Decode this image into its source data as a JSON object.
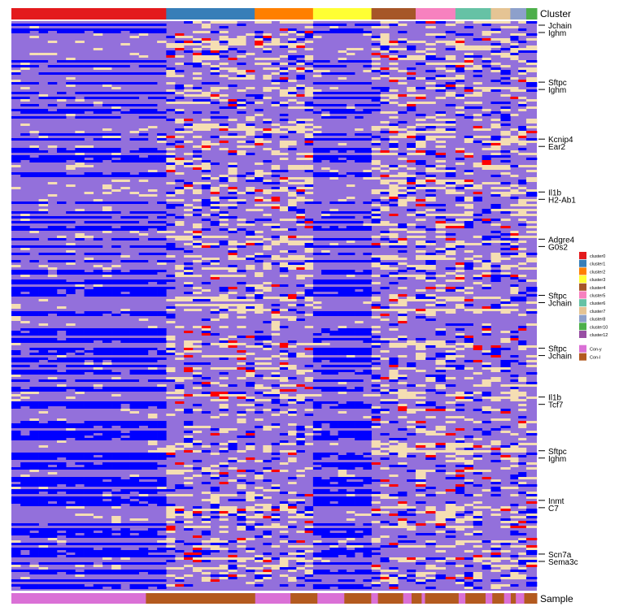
{
  "chart_data": {
    "type": "heatmap",
    "title": "",
    "xlabel": "",
    "ylabel": "",
    "top_annotation": {
      "title": "Cluster",
      "groups": [
        {
          "name": "cluster0",
          "color": "#e31a1c",
          "cells": 175
        },
        {
          "name": "cluster1",
          "color": "#377eb8",
          "cells": 100
        },
        {
          "name": "cluster2",
          "color": "#ff7f00",
          "cells": 66
        },
        {
          "name": "cluster3",
          "color": "#ffff33",
          "cells": 66
        },
        {
          "name": "cluster4",
          "color": "#a65628",
          "cells": 50
        },
        {
          "name": "cluster5",
          "color": "#f781bf",
          "cells": 45
        },
        {
          "name": "cluster6",
          "color": "#66c2a5",
          "cells": 40
        },
        {
          "name": "cluster7",
          "color": "#e5c494",
          "cells": 22
        },
        {
          "name": "cluster8",
          "color": "#8da0cb",
          "cells": 18
        },
        {
          "name": "cluster10",
          "color": "#4daf4a",
          "cells": 12
        },
        {
          "name": "cluster12",
          "color": "#984ea3",
          "cells": 0
        }
      ]
    },
    "bottom_annotation": {
      "title": "Sample",
      "groups": [
        {
          "name": "Con-y",
          "color": "#da70d6"
        },
        {
          "name": "Con-l",
          "color": "#b35a1f"
        }
      ],
      "runs": [
        [
          "Con-y",
          160
        ],
        [
          "Con-l",
          130
        ],
        [
          "Con-y",
          42
        ],
        [
          "Con-l",
          32
        ],
        [
          "Con-y",
          32
        ],
        [
          "Con-l",
          32
        ],
        [
          "Con-y",
          8
        ],
        [
          "Con-l",
          30
        ],
        [
          "Con-y",
          10
        ],
        [
          "Con-l",
          12
        ],
        [
          "Con-y",
          4
        ],
        [
          "Con-l",
          40
        ],
        [
          "Con-y",
          8
        ],
        [
          "Con-l",
          24
        ],
        [
          "Con-y",
          8
        ],
        [
          "Con-l",
          14
        ],
        [
          "Con-y",
          8
        ],
        [
          "Con-l",
          6
        ],
        [
          "Con-y",
          10
        ],
        [
          "Con-l",
          15
        ]
      ]
    },
    "legend": {
      "position": "right",
      "cluster_entries": [
        "cluster0",
        "cluster1",
        "cluster2",
        "cluster3",
        "cluster4",
        "cluster5",
        "cluster6",
        "cluster7",
        "cluster8",
        "cluster10",
        "cluster12"
      ],
      "sample_entries": [
        "Con-y",
        "Con-l"
      ]
    },
    "row_labels": [
      {
        "label": "Jchain",
        "row": 5
      },
      {
        "label": "Ighm",
        "row": 14
      },
      {
        "label": "Sftpc",
        "row": 75
      },
      {
        "label": "Ighm",
        "row": 84
      },
      {
        "label": "Kcnip4",
        "row": 145
      },
      {
        "label": "Ear2",
        "row": 154
      },
      {
        "label": "Il1b",
        "row": 210
      },
      {
        "label": "H2-Ab1",
        "row": 219
      },
      {
        "label": "Adgre4",
        "row": 268
      },
      {
        "label": "G0s2",
        "row": 277
      },
      {
        "label": "Sftpc",
        "row": 337
      },
      {
        "label": "Jchain",
        "row": 346
      },
      {
        "label": "Sftpc",
        "row": 402
      },
      {
        "label": "Jchain",
        "row": 411
      },
      {
        "label": "Il1b",
        "row": 462
      },
      {
        "label": "Tcf7",
        "row": 471
      },
      {
        "label": "Sftpc",
        "row": 528
      },
      {
        "label": "Ighm",
        "row": 537
      },
      {
        "label": "Inmt",
        "row": 589
      },
      {
        "label": "C7",
        "row": 598
      },
      {
        "label": "Scn7a",
        "row": 655
      },
      {
        "label": "Sema3c",
        "row": 664
      }
    ],
    "n_rows": 700,
    "color_scale": [
      "#0000ff",
      "#9370db",
      "#f5deb3",
      "#ff0000"
    ],
    "expression_pattern_note_free": true
  },
  "colors": {
    "low": "#0000ff",
    "mid": "#9370db",
    "high": "#f5deb3",
    "max": "#ff0000"
  }
}
